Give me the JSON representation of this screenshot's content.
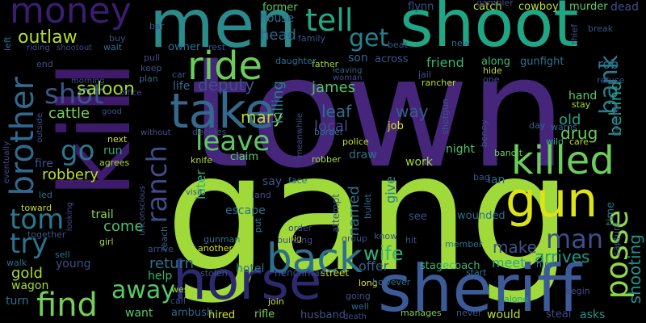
{
  "word_cloud": {
    "words": [
      {
        "text": "town",
        "color": "#46267a"
      },
      {
        "text": "gang",
        "color": "#9fd93a"
      },
      {
        "text": "kill",
        "color": "#3e1a6a"
      },
      {
        "text": "shoot",
        "color": "#21a685"
      },
      {
        "text": "men",
        "color": "#2b8a8c"
      },
      {
        "text": "sheriff",
        "color": "#3b5a97"
      },
      {
        "text": "horse",
        "color": "#2c2a6e"
      },
      {
        "text": "take",
        "color": "#34698d"
      },
      {
        "text": "gun",
        "color": "#dce319"
      },
      {
        "text": "ride",
        "color": "#6ccd5a"
      },
      {
        "text": "killed",
        "color": "#6ccd5a"
      },
      {
        "text": "back",
        "color": "#2d708e"
      },
      {
        "text": "money",
        "color": "#3a1d6e"
      },
      {
        "text": "tell",
        "color": "#22a884"
      },
      {
        "text": "brother",
        "color": "#31688e"
      },
      {
        "text": "leave",
        "color": "#5cc863"
      },
      {
        "text": "posse",
        "color": "#8fd744"
      },
      {
        "text": "find",
        "color": "#74d055"
      },
      {
        "text": "shot",
        "color": "#3a548c"
      },
      {
        "text": "ranch",
        "color": "#3d4d8a"
      },
      {
        "text": "tom",
        "color": "#2a788e"
      },
      {
        "text": "man",
        "color": "#3d4e8a"
      },
      {
        "text": "outlaw",
        "color": "#b5de2b"
      },
      {
        "text": "get",
        "color": "#26828e"
      },
      {
        "text": "bank",
        "color": "#2a7b8e"
      },
      {
        "text": "go",
        "color": "#2a778e"
      },
      {
        "text": "try",
        "color": "#2c718e"
      },
      {
        "text": "away",
        "color": "#58c765"
      },
      {
        "text": "wife",
        "color": "#2fb47c"
      },
      {
        "text": "saloon",
        "color": "#a2da37"
      },
      {
        "text": "cattle",
        "color": "#7ad151"
      },
      {
        "text": "robbery",
        "color": "#bddf26"
      },
      {
        "text": "mary",
        "color": "#b5de2b"
      },
      {
        "text": "deputy",
        "color": "#3b518b"
      },
      {
        "text": "drug",
        "color": "#6ccd5a"
      },
      {
        "text": "shooting",
        "color": "#20938c"
      },
      {
        "text": "behind",
        "color": "#1fa287"
      },
      {
        "text": "head",
        "color": "#31688e"
      },
      {
        "text": "killing",
        "color": "#26828e"
      },
      {
        "text": "james",
        "color": "#54c568"
      },
      {
        "text": "local",
        "color": "#3e4c8a"
      },
      {
        "text": "come",
        "color": "#4ac16d"
      },
      {
        "text": "return",
        "color": "#2d708e"
      },
      {
        "text": "gold",
        "color": "#a8db34"
      },
      {
        "text": "make",
        "color": "#3b528b"
      },
      {
        "text": "meet",
        "color": "#25ab82"
      },
      {
        "text": "arrives",
        "color": "#1e9c89"
      },
      {
        "text": "old",
        "color": "#20a386"
      },
      {
        "text": "way",
        "color": "#365d8d"
      },
      {
        "text": "son",
        "color": "#31678e"
      },
      {
        "text": "friend",
        "color": "#34b679"
      },
      {
        "text": "leaf",
        "color": "#2e6d8e"
      },
      {
        "text": "rob",
        "color": "#2c738e"
      },
      {
        "text": "run",
        "color": "#25ab82"
      },
      {
        "text": "wagon",
        "color": "#a5db36"
      },
      {
        "text": "turn",
        "color": "#2c728e"
      },
      {
        "text": "help",
        "color": "#34b679"
      },
      {
        "text": "offer",
        "color": "#34618d"
      },
      {
        "text": "hotel",
        "color": "#2c728e"
      },
      {
        "text": "life",
        "color": "#2f6b8e"
      },
      {
        "text": "named",
        "color": "#2c718e"
      },
      {
        "text": "later",
        "color": "#2cb17e"
      },
      {
        "text": "escape",
        "color": "#2e6e8e"
      },
      {
        "text": "trail",
        "color": "#8ed645"
      },
      {
        "text": "young",
        "color": "#3c4f8a"
      },
      {
        "text": "hand",
        "color": "#5ac864"
      },
      {
        "text": "fire",
        "color": "#3a548c"
      },
      {
        "text": "house",
        "color": "#2f6c8e"
      },
      {
        "text": "former",
        "color": "#5cc863"
      },
      {
        "text": "wounded",
        "color": "#2f6c8e"
      },
      {
        "text": "hired",
        "color": "#d8e219"
      },
      {
        "text": "rifle",
        "color": "#77d153"
      },
      {
        "text": "husband",
        "color": "#3a548c"
      },
      {
        "text": "ambush",
        "color": "#31688e"
      },
      {
        "text": "want",
        "color": "#58c765"
      },
      {
        "text": "would",
        "color": "#b8de29"
      },
      {
        "text": "steal",
        "color": "#3e4989"
      },
      {
        "text": "asks",
        "color": "#20928c"
      },
      {
        "text": "stagecoach",
        "color": "#38b977"
      },
      {
        "text": "street",
        "color": "#d0e11c"
      },
      {
        "text": "henchman",
        "color": "#3b528b"
      },
      {
        "text": "another",
        "color": "#d2e21b"
      },
      {
        "text": "say",
        "color": "#3a548c"
      },
      {
        "text": "claim",
        "color": "#60ca60"
      },
      {
        "text": "work",
        "color": "#9dd93b"
      },
      {
        "text": "give",
        "color": "#25838e"
      },
      {
        "text": "draw",
        "color": "#2c718e"
      },
      {
        "text": "night",
        "color": "#4cc26c"
      },
      {
        "text": "job",
        "color": "#dde318"
      },
      {
        "text": "gunfight",
        "color": "#2c738e"
      },
      {
        "text": "along",
        "color": "#3dbc74"
      },
      {
        "text": "across",
        "color": "#3b528b"
      },
      {
        "text": "catch",
        "color": "#c5e021"
      },
      {
        "text": "cowboy",
        "color": "#bddf26"
      },
      {
        "text": "murder",
        "color": "#5ec962"
      },
      {
        "text": "dead",
        "color": "#3d4e8a"
      },
      {
        "text": "flynn",
        "color": "#3b518b"
      },
      {
        "text": "ian",
        "color": "#2f6b8e"
      },
      {
        "text": "see",
        "color": "#3d4d8a"
      },
      {
        "text": "knife",
        "color": "#b0dd2f"
      },
      {
        "text": "agrees",
        "color": "#a0da39"
      },
      {
        "text": "next",
        "color": "#d5e21a"
      },
      {
        "text": "owner",
        "color": "#2c718e"
      },
      {
        "text": "police",
        "color": "#c2df23"
      },
      {
        "text": "bandit",
        "color": "#6ccd5a"
      },
      {
        "text": "warns",
        "color": "#33638d"
      },
      {
        "text": "wild",
        "color": "#30b47c"
      },
      {
        "text": "care",
        "color": "#bddf26"
      },
      {
        "text": "girl",
        "color": "#a5db36"
      },
      {
        "text": "together",
        "color": "#3a548c"
      },
      {
        "text": "toward",
        "color": "#c2df23"
      },
      {
        "text": "led",
        "color": "#2a768e"
      },
      {
        "text": "bag",
        "color": "#3a548c"
      },
      {
        "text": "robber",
        "color": "#a0da39"
      },
      {
        "text": "jail",
        "color": "#3b528b"
      },
      {
        "text": "leaving",
        "color": "#33638d"
      },
      {
        "text": "woman",
        "color": "#3e4c8a"
      },
      {
        "text": "rancher",
        "color": "#b5de2b"
      },
      {
        "text": "father",
        "color": "#9bd93c"
      },
      {
        "text": "decides",
        "color": "#3f4788"
      },
      {
        "text": "border",
        "color": "#2c718e"
      },
      {
        "text": "day",
        "color": "#34618d"
      },
      {
        "text": "stay",
        "color": "#a8db34"
      },
      {
        "text": "benny",
        "color": "#3c4f8a"
      },
      {
        "text": "partner",
        "color": "#3e4a89"
      },
      {
        "text": "refuse",
        "color": "#3b528b"
      },
      {
        "text": "thief",
        "color": "#3b528b"
      },
      {
        "text": "break",
        "color": "#3b528b"
      },
      {
        "text": "time",
        "color": "#2e6e8e"
      },
      {
        "text": "capture",
        "color": "#355f8d"
      },
      {
        "text": "hire",
        "color": "#2c718e"
      },
      {
        "text": "member",
        "color": "#2c718e"
      },
      {
        "text": "manages",
        "color": "#7ad151"
      },
      {
        "text": "never",
        "color": "#3b518b"
      },
      {
        "text": "alone",
        "color": "#1fa088"
      },
      {
        "text": "begin",
        "color": "#3e4989"
      },
      {
        "text": "hit",
        "color": "#3e4c8a"
      },
      {
        "text": "start",
        "color": "#2b748e"
      },
      {
        "text": "death",
        "color": "#3d4d8a"
      },
      {
        "text": "long",
        "color": "#e5e419"
      },
      {
        "text": "well",
        "color": "#2e6e8e"
      },
      {
        "text": "going",
        "color": "#3b518b"
      },
      {
        "text": "reach",
        "color": "#32648e"
      },
      {
        "text": "call",
        "color": "#3e4c8a"
      },
      {
        "text": "west",
        "color": "#a5db36"
      },
      {
        "text": "join",
        "color": "#d2e21b"
      },
      {
        "text": "put",
        "color": "#2c728e"
      },
      {
        "text": "big",
        "color": "#dfe318"
      },
      {
        "text": "order",
        "color": "#3f4788"
      },
      {
        "text": "land",
        "color": "#3b528b"
      },
      {
        "text": "face",
        "color": "#2e6e8e"
      },
      {
        "text": "building",
        "color": "#3e4c8a"
      },
      {
        "text": "stolen",
        "color": "#3b518b"
      },
      {
        "text": "gunman",
        "color": "#2c728e"
      },
      {
        "text": "arrive",
        "color": "#3e4c8a"
      },
      {
        "text": "sell",
        "color": "#2b748e"
      },
      {
        "text": "walk",
        "color": "#2c718e"
      },
      {
        "text": "attempt",
        "color": "#3b528b"
      },
      {
        "text": "bullet",
        "color": "#2f6b8e"
      },
      {
        "text": "however",
        "color": "#2f6c8e"
      },
      {
        "text": "group",
        "color": "#3d4d8a"
      },
      {
        "text": "know",
        "color": "#3b528b"
      },
      {
        "text": "shotgun",
        "color": "#3b528b"
      },
      {
        "text": "hide",
        "color": "#c0df25"
      },
      {
        "text": "one",
        "color": "#3b528b"
      },
      {
        "text": "new",
        "color": "#2e6e8e"
      },
      {
        "text": "beat",
        "color": "#3b528b"
      },
      {
        "text": "gambler",
        "color": "#3e4c8a"
      },
      {
        "text": "family",
        "color": "#3b528b"
      },
      {
        "text": "daughter",
        "color": "#2c718e"
      },
      {
        "text": "pull",
        "color": "#3e4c8a"
      },
      {
        "text": "plan",
        "color": "#2e6e8e"
      },
      {
        "text": "keep",
        "color": "#3b528b"
      },
      {
        "text": "car",
        "color": "#3b528b"
      },
      {
        "text": "rest",
        "color": "#3b528b"
      },
      {
        "text": "bar",
        "color": "#3b518b"
      },
      {
        "text": "buy",
        "color": "#3e4c8a"
      },
      {
        "text": "wait",
        "color": "#2c718e"
      },
      {
        "text": "riding",
        "color": "#3b528b"
      },
      {
        "text": "shootout",
        "color": "#3e4989"
      },
      {
        "text": "left",
        "color": "#2c718e"
      },
      {
        "text": "end",
        "color": "#3b528b"
      },
      {
        "text": "morning",
        "color": "#3b528b"
      },
      {
        "text": "office",
        "color": "#3e4c8a"
      },
      {
        "text": "good",
        "color": "#3b528b"
      },
      {
        "text": "outside",
        "color": "#3b528b"
      },
      {
        "text": "eventually",
        "color": "#3e4c8a"
      },
      {
        "text": "unconscious",
        "color": "#3b528b"
      },
      {
        "text": "looking",
        "color": "#3e4c8a"
      },
      {
        "text": "meanwhile",
        "color": "#3b528b"
      },
      {
        "text": "without",
        "color": "#3b528b"
      },
      {
        "text": "visit",
        "color": "#3e4c8a"
      }
    ]
  }
}
